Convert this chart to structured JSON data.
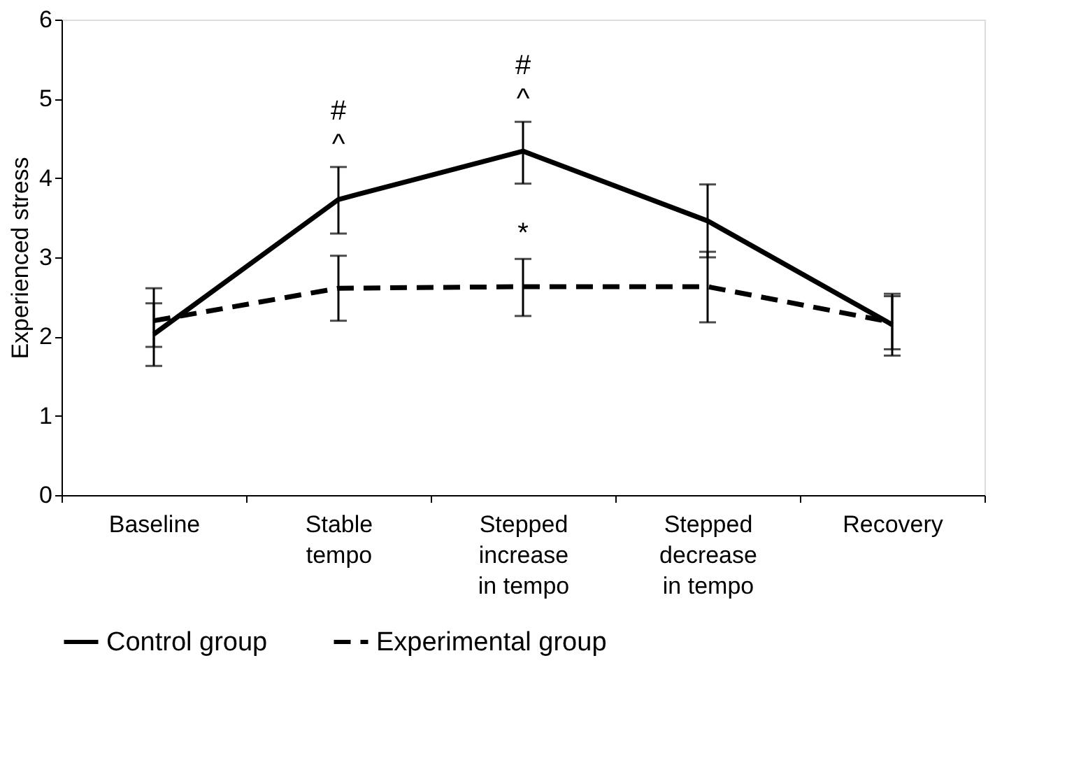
{
  "chart_data": {
    "type": "line",
    "ylabel": "Experienced stress",
    "categories": [
      "Baseline",
      "Stable tempo",
      "Stepped increase in tempo",
      "Stepped decrease in tempo",
      "Recovery"
    ],
    "series": [
      {
        "name": "Control group",
        "color": "#000000",
        "line_style": "solid",
        "values": [
          2.03,
          3.73,
          4.34,
          3.46,
          2.15
        ],
        "errors": [
          [
            1.63,
            2.61
          ],
          [
            3.3,
            4.14
          ],
          [
            3.93,
            4.71
          ],
          [
            3.0,
            3.92
          ],
          [
            1.76,
            2.54
          ]
        ]
      },
      {
        "name": "Experimental group",
        "color": "#000000",
        "line_style": "dashed",
        "values": [
          2.2,
          2.61,
          2.63,
          2.63,
          2.18
        ],
        "errors": [
          [
            1.87,
            2.42
          ],
          [
            2.2,
            3.02
          ],
          [
            2.26,
            2.98
          ],
          [
            2.18,
            3.07
          ],
          [
            1.84,
            2.51
          ]
        ]
      }
    ],
    "annotations": [
      "#",
      "^",
      "#",
      "^",
      "*"
    ],
    "ylim": [
      0,
      6
    ],
    "yticks": [
      0,
      1,
      2,
      3,
      4,
      5,
      6
    ],
    "grid": false,
    "legend": "bottom",
    "marker": "none"
  }
}
